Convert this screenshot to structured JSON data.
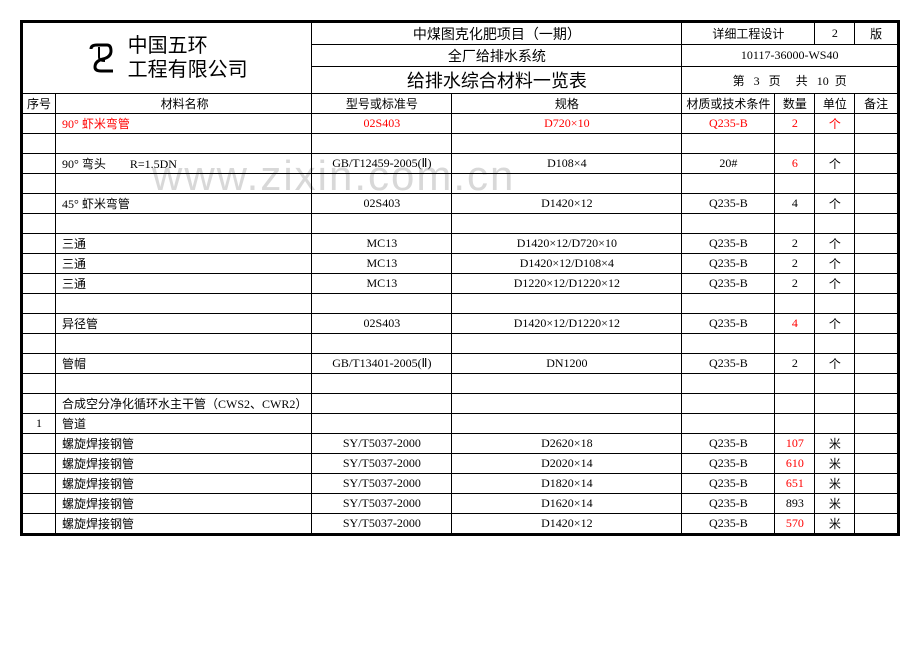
{
  "header": {
    "company": "中国五环\n工程有限公司",
    "project": "中煤图克化肥项目（一期）",
    "system": "全厂给排水系统",
    "title": "给排水综合材料一览表",
    "design_stage": "详细工程设计",
    "revision_label": "版",
    "revision": "2",
    "doc_no": "10117-36000-WS40",
    "page_lbl_di": "第",
    "page_cur": "3",
    "page_lbl_ye": "页",
    "page_lbl_gong": "共",
    "page_total": "10",
    "page_lbl_ye2": "页"
  },
  "cols": {
    "seq": "序号",
    "name": "材料名称",
    "std": "型号或标准号",
    "spec": "规格",
    "mat": "材质或技术条件",
    "qty": "数量",
    "unit": "单位",
    "note": "备注"
  },
  "watermark": "www.zixin.com.cn",
  "rows": [
    {
      "seq": "",
      "name": "90° 虾米弯管",
      "std": "02S403",
      "spec": "D720×10",
      "mat": "Q235-B",
      "qty": "2",
      "unit": "个",
      "note": "",
      "red_name": true,
      "red_std": true,
      "red_spec": true,
      "red_mat": true,
      "red_qty": true,
      "red_unit": true
    },
    {
      "blank": true
    },
    {
      "seq": "",
      "name": "90° 弯头　　R=1.5DN",
      "std": "GB/T12459-2005(Ⅱ)",
      "spec": "D108×4",
      "mat": "20#",
      "qty": "6",
      "unit": "个",
      "note": "",
      "red_qty": true
    },
    {
      "blank": true
    },
    {
      "seq": "",
      "name": "45° 虾米弯管",
      "std": "02S403",
      "spec": "D1420×12",
      "mat": "Q235-B",
      "qty": "4",
      "unit": "个",
      "note": ""
    },
    {
      "blank": true
    },
    {
      "seq": "",
      "name": "三通",
      "std": "MC13",
      "spec": "D1420×12/D720×10",
      "mat": "Q235-B",
      "qty": "2",
      "unit": "个",
      "note": ""
    },
    {
      "seq": "",
      "name": "三通",
      "std": "MC13",
      "spec": "D1420×12/D108×4",
      "mat": "Q235-B",
      "qty": "2",
      "unit": "个",
      "note": ""
    },
    {
      "seq": "",
      "name": "三通",
      "std": "MC13",
      "spec": "D1220×12/D1220×12",
      "mat": "Q235-B",
      "qty": "2",
      "unit": "个",
      "note": ""
    },
    {
      "blank": true
    },
    {
      "seq": "",
      "name": "异径管",
      "std": "02S403",
      "spec": "D1420×12/D1220×12",
      "mat": "Q235-B",
      "qty": "4",
      "unit": "个",
      "note": "",
      "red_qty": true
    },
    {
      "blank": true
    },
    {
      "seq": "",
      "name": "管帽",
      "std": "GB/T13401-2005(Ⅱ)",
      "spec": "DN1200",
      "mat": "Q235-B",
      "qty": "2",
      "unit": "个",
      "note": ""
    },
    {
      "blank": true
    },
    {
      "seq": "",
      "name": "合成空分净化循环水主干管（CWS2、CWR2）",
      "std": "",
      "spec": "",
      "mat": "",
      "qty": "",
      "unit": "",
      "note": ""
    },
    {
      "seq": "1",
      "name": "管道",
      "std": "",
      "spec": "",
      "mat": "",
      "qty": "",
      "unit": "",
      "note": ""
    },
    {
      "seq": "",
      "name": "螺旋焊接钢管",
      "std": "SY/T5037-2000",
      "spec": "D2620×18",
      "mat": "Q235-B",
      "qty": "107",
      "unit": "米",
      "note": "",
      "red_qty": true
    },
    {
      "seq": "",
      "name": "螺旋焊接钢管",
      "std": "SY/T5037-2000",
      "spec": "D2020×14",
      "mat": "Q235-B",
      "qty": "610",
      "unit": "米",
      "note": "",
      "red_qty": true
    },
    {
      "seq": "",
      "name": "螺旋焊接钢管",
      "std": "SY/T5037-2000",
      "spec": "D1820×14",
      "mat": "Q235-B",
      "qty": "651",
      "unit": "米",
      "note": "",
      "red_qty": true
    },
    {
      "seq": "",
      "name": "螺旋焊接钢管",
      "std": "SY/T5037-2000",
      "spec": "D1620×14",
      "mat": "Q235-B",
      "qty": "893",
      "unit": "米",
      "note": ""
    },
    {
      "seq": "",
      "name": "螺旋焊接钢管",
      "std": "SY/T5037-2000",
      "spec": "D1420×12",
      "mat": "Q235-B",
      "qty": "570",
      "unit": "米",
      "note": "",
      "red_qty": true
    }
  ],
  "colors": {
    "red": "#ff0000",
    "border": "#000000",
    "bg": "#ffffff",
    "watermark": "#d8d8d8"
  }
}
